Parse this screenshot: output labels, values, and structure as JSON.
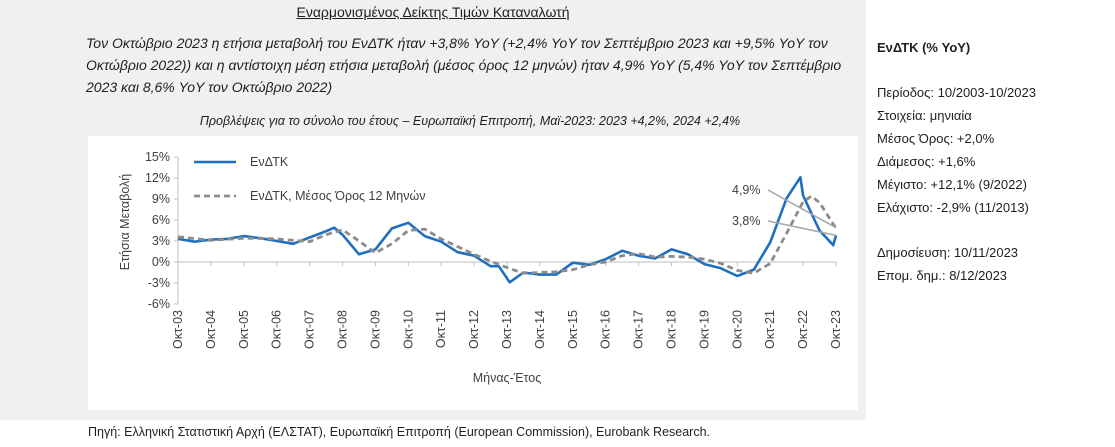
{
  "heading": "Εναρμονισμένος Δείκτης Τιμών Καταναλωτή",
  "summary": "Τον Οκτώβριο 2023 η ετήσια μεταβολή του ΕνΔΤΚ ήταν +3,8% YoY (+2,4% YoY τον Σεπτέμβριο 2023 και +9,5% YoY τον Οκτώβριο 2022)) και η αντίστοιχη μέση ετήσια μεταβολή (μέσος όρος 12 μηνών) ήταν 4,9% YoY (5,4% YoY τον Σεπτέμβριο 2023 και 8,6% YoY τον Οκτώβριο 2022)",
  "forecast": "Προβλέψεις για το σύνολο του έτους – Ευρωπαϊκή Επιτροπή, Μαϊ-2023: 2023 +4,2%, 2024 +2,4%",
  "source": "Πηγή: Ελληνική Στατιστική Αρχή (ΕΛΣΤΑΤ), Ευρωπαϊκή Επιτροπή (European Commission), Eurobank Research.",
  "side": {
    "title": "ΕνΔΤΚ (% YoY)",
    "period": "Περίοδος: 10/2003-10/2023",
    "data": "Στοιχεία: μηνιαία",
    "mean": "Μέσος Όρος: +2,0%",
    "median": "Διάμεσος: +1,6%",
    "max": "Μέγιστο: +12,1% (9/2022)",
    "min": "Ελάχιστο: -2,9% (11/2013)",
    "published": "Δημοσίευση: 10/11/2023",
    "next": "Επομ. δημ.: 8/12/2023"
  },
  "colors": {
    "hicp": "#1f6fbf",
    "avg": "#8c8c8c",
    "leader": "#a6a6a6"
  },
  "chart_data": {
    "type": "line",
    "xlabel": "Μήνας-Έτος",
    "ylabel": "Ετήσια Μεταβολή",
    "ylim": [
      -6,
      15
    ],
    "yticks": [
      "-6%",
      "-3%",
      "0%",
      "3%",
      "6%",
      "9%",
      "12%",
      "15%"
    ],
    "x_start": "Oct-2003",
    "x_end": "Oct-2023",
    "frequency": "monthly",
    "categories": [
      "Οκτ-03",
      "Οκτ-04",
      "Οκτ-05",
      "Οκτ-06",
      "Οκτ-07",
      "Οκτ-08",
      "Οκτ-09",
      "Οκτ-10",
      "Οκτ-11",
      "Οκτ-12",
      "Οκτ-13",
      "Οκτ-14",
      "Οκτ-15",
      "Οκτ-16",
      "Οκτ-17",
      "Οκτ-18",
      "Οκτ-19",
      "Οκτ-20",
      "Οκτ-21",
      "Οκτ-22",
      "Οκτ-23"
    ],
    "legend_position": "top-left",
    "annotations": [
      {
        "text": "4,9%",
        "x": "Oct-2023",
        "y": 4.9
      },
      {
        "text": "3,8%",
        "x": "Oct-2023",
        "y": 3.8
      }
    ],
    "series": [
      {
        "name": "ΕνΔΤΚ",
        "style": "solid",
        "values": [
          {
            "x": "Oct-2003",
            "y": 3.3
          },
          {
            "x": "Apr-2004",
            "y": 2.9
          },
          {
            "x": "Oct-2004",
            "y": 3.2
          },
          {
            "x": "Apr-2005",
            "y": 3.3
          },
          {
            "x": "Oct-2005",
            "y": 3.7
          },
          {
            "x": "Apr-2006",
            "y": 3.4
          },
          {
            "x": "Oct-2006",
            "y": 3.0
          },
          {
            "x": "Apr-2007",
            "y": 2.6
          },
          {
            "x": "Oct-2007",
            "y": 3.5
          },
          {
            "x": "Apr-2008",
            "y": 4.4
          },
          {
            "x": "Jul-2008",
            "y": 4.9
          },
          {
            "x": "Oct-2008",
            "y": 3.9
          },
          {
            "x": "Apr-2009",
            "y": 1.1
          },
          {
            "x": "Oct-2009",
            "y": 1.8
          },
          {
            "x": "Apr-2010",
            "y": 4.8
          },
          {
            "x": "Oct-2010",
            "y": 5.6
          },
          {
            "x": "Apr-2011",
            "y": 3.7
          },
          {
            "x": "Oct-2011",
            "y": 2.9
          },
          {
            "x": "Apr-2012",
            "y": 1.4
          },
          {
            "x": "Oct-2012",
            "y": 0.9
          },
          {
            "x": "Apr-2013",
            "y": -0.6
          },
          {
            "x": "Jul-2013",
            "y": -0.6
          },
          {
            "x": "Nov-2013",
            "y": -2.9
          },
          {
            "x": "Apr-2014",
            "y": -1.5
          },
          {
            "x": "Oct-2014",
            "y": -1.8
          },
          {
            "x": "Apr-2015",
            "y": -1.8
          },
          {
            "x": "Oct-2015",
            "y": -0.1
          },
          {
            "x": "Apr-2016",
            "y": -0.4
          },
          {
            "x": "Oct-2016",
            "y": 0.4
          },
          {
            "x": "Apr-2017",
            "y": 1.6
          },
          {
            "x": "Oct-2017",
            "y": 0.9
          },
          {
            "x": "Apr-2018",
            "y": 0.5
          },
          {
            "x": "Oct-2018",
            "y": 1.8
          },
          {
            "x": "Apr-2019",
            "y": 1.1
          },
          {
            "x": "Oct-2019",
            "y": -0.3
          },
          {
            "x": "Apr-2020",
            "y": -0.9
          },
          {
            "x": "Oct-2020",
            "y": -2.0
          },
          {
            "x": "Apr-2021",
            "y": -1.1
          },
          {
            "x": "Oct-2021",
            "y": 2.8
          },
          {
            "x": "Apr-2022",
            "y": 9.1
          },
          {
            "x": "Sep-2022",
            "y": 12.1
          },
          {
            "x": "Oct-2022",
            "y": 9.5
          },
          {
            "x": "Apr-2023",
            "y": 4.5
          },
          {
            "x": "Sep-2023",
            "y": 2.4
          },
          {
            "x": "Oct-2023",
            "y": 3.8
          }
        ]
      },
      {
        "name": "ΕνΔΤΚ, Μέσος Όρος 12 Μηνών",
        "style": "dashed",
        "values": [
          {
            "x": "Oct-2003",
            "y": 3.6
          },
          {
            "x": "Oct-2004",
            "y": 3.1
          },
          {
            "x": "Oct-2005",
            "y": 3.4
          },
          {
            "x": "Oct-2006",
            "y": 3.3
          },
          {
            "x": "Oct-2007",
            "y": 2.9
          },
          {
            "x": "Apr-2008",
            "y": 3.9
          },
          {
            "x": "Oct-2008",
            "y": 4.6
          },
          {
            "x": "Apr-2009",
            "y": 3.0
          },
          {
            "x": "Oct-2009",
            "y": 1.3
          },
          {
            "x": "Apr-2010",
            "y": 2.6
          },
          {
            "x": "Oct-2010",
            "y": 4.5
          },
          {
            "x": "Apr-2011",
            "y": 4.7
          },
          {
            "x": "Oct-2011",
            "y": 3.3
          },
          {
            "x": "Apr-2012",
            "y": 2.2
          },
          {
            "x": "Oct-2012",
            "y": 1.1
          },
          {
            "x": "Apr-2013",
            "y": 0.1
          },
          {
            "x": "Oct-2013",
            "y": -0.8
          },
          {
            "x": "Apr-2014",
            "y": -1.6
          },
          {
            "x": "Oct-2014",
            "y": -1.5
          },
          {
            "x": "Apr-2015",
            "y": -1.4
          },
          {
            "x": "Oct-2015",
            "y": -1.1
          },
          {
            "x": "Apr-2016",
            "y": -0.4
          },
          {
            "x": "Oct-2016",
            "y": 0.0
          },
          {
            "x": "Apr-2017",
            "y": 0.9
          },
          {
            "x": "Oct-2017",
            "y": 1.2
          },
          {
            "x": "Apr-2018",
            "y": 0.7
          },
          {
            "x": "Oct-2018",
            "y": 0.8
          },
          {
            "x": "Apr-2019",
            "y": 0.7
          },
          {
            "x": "Oct-2019",
            "y": 0.4
          },
          {
            "x": "Apr-2020",
            "y": -0.2
          },
          {
            "x": "Oct-2020",
            "y": -1.2
          },
          {
            "x": "Apr-2021",
            "y": -1.6
          },
          {
            "x": "Oct-2021",
            "y": -0.2
          },
          {
            "x": "Apr-2022",
            "y": 4.1
          },
          {
            "x": "Oct-2022",
            "y": 8.6
          },
          {
            "x": "Jan-2023",
            "y": 9.4
          },
          {
            "x": "Apr-2023",
            "y": 8.5
          },
          {
            "x": "Sep-2023",
            "y": 5.4
          },
          {
            "x": "Oct-2023",
            "y": 4.9
          }
        ]
      }
    ]
  }
}
